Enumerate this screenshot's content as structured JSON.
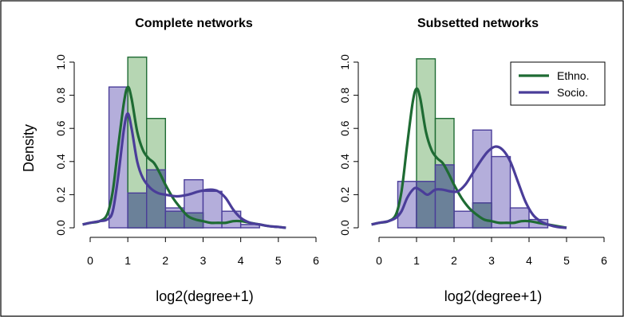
{
  "colors": {
    "ethno": "#1e6b33",
    "socio": "#4a3d99",
    "ethno_fill": "#a9cfa6",
    "socio_fill": "#b4aedb",
    "overlap_fill": "#6b8199"
  },
  "figure": {
    "ylabel": "Density"
  },
  "chart_data": [
    {
      "type": "bar",
      "title": "Complete networks",
      "xlabel": "log2(degree+1)",
      "ylabel": "Density",
      "xlim": [
        0,
        6
      ],
      "ylim": [
        0,
        1.0
      ],
      "x_ticks": [
        0,
        1,
        2,
        3,
        4,
        5,
        6
      ],
      "y_ticks": [
        0.0,
        0.2,
        0.4,
        0.6,
        0.8,
        1.0
      ],
      "bin_edges": [
        0,
        0.5,
        1.0,
        1.5,
        2.0,
        2.5,
        3.0,
        3.5,
        4.0,
        4.5
      ],
      "series": [
        {
          "name": "Ethno.",
          "color": "ethno",
          "hist": [
            0,
            0,
            1.03,
            0.66,
            0.1,
            0.09,
            0,
            0,
            0
          ],
          "density_x": [
            -0.2,
            0,
            0.25,
            0.45,
            0.6,
            0.75,
            0.9,
            1.0,
            1.1,
            1.25,
            1.4,
            1.55,
            1.7,
            1.85,
            2.0,
            2.2,
            2.4,
            2.6,
            2.8,
            3.0,
            3.2,
            3.4,
            3.6,
            3.8,
            4.0,
            4.25,
            4.5,
            4.75,
            5.0,
            5.2
          ],
          "density_y": [
            0.02,
            0.03,
            0.04,
            0.08,
            0.22,
            0.5,
            0.76,
            0.85,
            0.78,
            0.58,
            0.47,
            0.42,
            0.39,
            0.33,
            0.26,
            0.18,
            0.12,
            0.07,
            0.05,
            0.04,
            0.03,
            0.03,
            0.03,
            0.04,
            0.04,
            0.03,
            0.02,
            0.01,
            0.005,
            0.0
          ]
        },
        {
          "name": "Socio.",
          "color": "socio",
          "hist": [
            0,
            0.85,
            0.21,
            0.35,
            0.12,
            0.29,
            0.22,
            0.1,
            0.02
          ],
          "density_x": [
            -0.2,
            0,
            0.25,
            0.45,
            0.6,
            0.75,
            0.9,
            1.0,
            1.1,
            1.25,
            1.4,
            1.6,
            1.8,
            2.0,
            2.3,
            2.6,
            2.9,
            3.2,
            3.4,
            3.6,
            3.8,
            4.0,
            4.25,
            4.5,
            4.75,
            5.0,
            5.2
          ],
          "density_y": [
            0.02,
            0.03,
            0.04,
            0.05,
            0.1,
            0.32,
            0.6,
            0.69,
            0.6,
            0.4,
            0.3,
            0.24,
            0.21,
            0.2,
            0.19,
            0.2,
            0.22,
            0.23,
            0.22,
            0.18,
            0.11,
            0.06,
            0.03,
            0.02,
            0.01,
            0.005,
            0.0
          ]
        }
      ]
    },
    {
      "type": "bar",
      "title": "Subsetted networks",
      "xlabel": "log2(degree+1)",
      "ylabel": "Density",
      "xlim": [
        0,
        6
      ],
      "ylim": [
        0,
        1.0
      ],
      "x_ticks": [
        0,
        1,
        2,
        3,
        4,
        5,
        6
      ],
      "y_ticks": [
        0.0,
        0.2,
        0.4,
        0.6,
        0.8,
        1.0
      ],
      "bin_edges": [
        0,
        0.5,
        1.0,
        1.5,
        2.0,
        2.5,
        3.0,
        3.5,
        4.0,
        4.5
      ],
      "legend": {
        "position": "top-right",
        "entries": [
          "Ethno.",
          "Socio."
        ]
      },
      "series": [
        {
          "name": "Ethno.",
          "color": "ethno",
          "hist": [
            0,
            0,
            1.02,
            0.66,
            0,
            0.15,
            0,
            0,
            0
          ],
          "density_x": [
            -0.2,
            0,
            0.25,
            0.45,
            0.6,
            0.75,
            0.9,
            1.0,
            1.1,
            1.25,
            1.4,
            1.55,
            1.7,
            1.85,
            2.0,
            2.2,
            2.4,
            2.6,
            2.8,
            3.0,
            3.2,
            3.4,
            3.6,
            3.8,
            4.0,
            4.25,
            4.5,
            4.75,
            5.0
          ],
          "density_y": [
            0.02,
            0.03,
            0.04,
            0.08,
            0.22,
            0.5,
            0.76,
            0.84,
            0.78,
            0.58,
            0.47,
            0.42,
            0.39,
            0.33,
            0.26,
            0.18,
            0.12,
            0.08,
            0.05,
            0.04,
            0.03,
            0.03,
            0.03,
            0.04,
            0.04,
            0.03,
            0.02,
            0.01,
            0.0
          ]
        },
        {
          "name": "Socio.",
          "color": "socio",
          "hist": [
            0,
            0.28,
            0.28,
            0.38,
            0.1,
            0.59,
            0.43,
            0.12,
            0.05
          ],
          "density_x": [
            -0.2,
            0,
            0.25,
            0.45,
            0.6,
            0.75,
            0.9,
            1.0,
            1.15,
            1.3,
            1.5,
            1.7,
            1.9,
            2.1,
            2.3,
            2.5,
            2.7,
            2.9,
            3.1,
            3.3,
            3.5,
            3.7,
            3.9,
            4.1,
            4.3,
            4.5,
            4.75,
            5.0
          ],
          "density_y": [
            0.02,
            0.03,
            0.04,
            0.06,
            0.1,
            0.18,
            0.23,
            0.24,
            0.22,
            0.2,
            0.23,
            0.23,
            0.22,
            0.22,
            0.26,
            0.33,
            0.4,
            0.46,
            0.49,
            0.47,
            0.4,
            0.28,
            0.16,
            0.08,
            0.04,
            0.02,
            0.005,
            0.0
          ]
        }
      ]
    }
  ]
}
